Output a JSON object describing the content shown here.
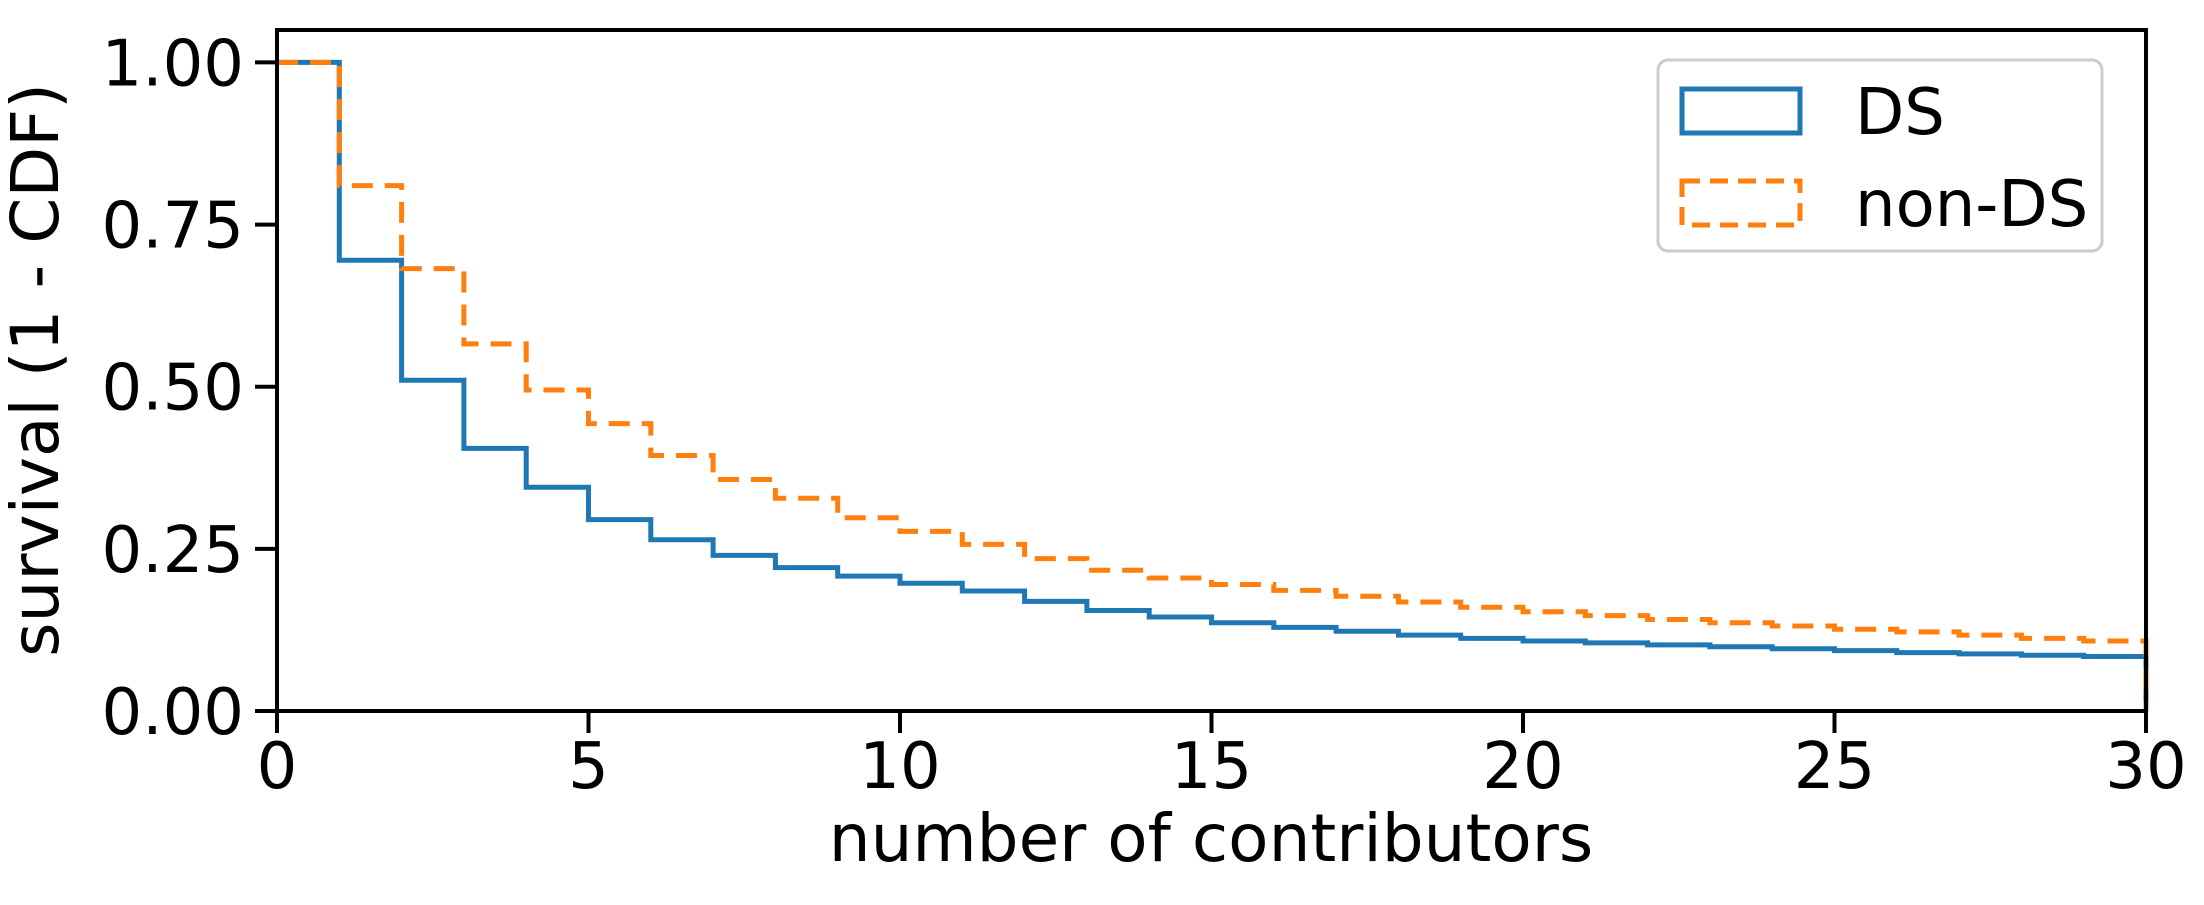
{
  "chart_data": {
    "type": "line",
    "subtype": "survival-step-histogram",
    "title": "",
    "xlabel": "number of contributors",
    "ylabel": "survival (1 - CDF)",
    "xlim": [
      0,
      30
    ],
    "ylim": [
      0,
      1.05
    ],
    "grid": false,
    "legend_position": "upper right",
    "xticks": [
      0,
      5,
      10,
      15,
      20,
      25,
      30
    ],
    "yticks": [
      0.0,
      0.25,
      0.5,
      0.75,
      1.0
    ],
    "ytick_labels": [
      "0.00",
      "0.25",
      "0.50",
      "0.75",
      "1.00"
    ],
    "bins": "unit-width bins, edges at integers 0 through 30, step drops at each integer",
    "series": [
      {
        "name": "DS",
        "color": "#1f77b4",
        "linestyle": "solid",
        "values": [
          1.0,
          0.695,
          0.51,
          0.405,
          0.345,
          0.295,
          0.264,
          0.24,
          0.221,
          0.208,
          0.197,
          0.185,
          0.169,
          0.155,
          0.145,
          0.136,
          0.129,
          0.123,
          0.117,
          0.112,
          0.108,
          0.105,
          0.102,
          0.099,
          0.096,
          0.093,
          0.09,
          0.088,
          0.086,
          0.084
        ]
      },
      {
        "name": "non-DS",
        "color": "#ff7f0e",
        "linestyle": "dashed",
        "values": [
          1.0,
          0.81,
          0.682,
          0.566,
          0.495,
          0.443,
          0.394,
          0.357,
          0.328,
          0.298,
          0.277,
          0.257,
          0.235,
          0.217,
          0.205,
          0.195,
          0.186,
          0.177,
          0.168,
          0.16,
          0.153,
          0.147,
          0.141,
          0.136,
          0.131,
          0.126,
          0.122,
          0.117,
          0.112,
          0.108
        ]
      }
    ],
    "legend": {
      "entries": [
        "DS",
        "non-DS"
      ]
    },
    "colors": {
      "ds": "#1f77b4",
      "non_ds": "#ff7f0e",
      "axis": "#000000",
      "legend_border": "#cccccc",
      "background": "#ffffff"
    }
  }
}
